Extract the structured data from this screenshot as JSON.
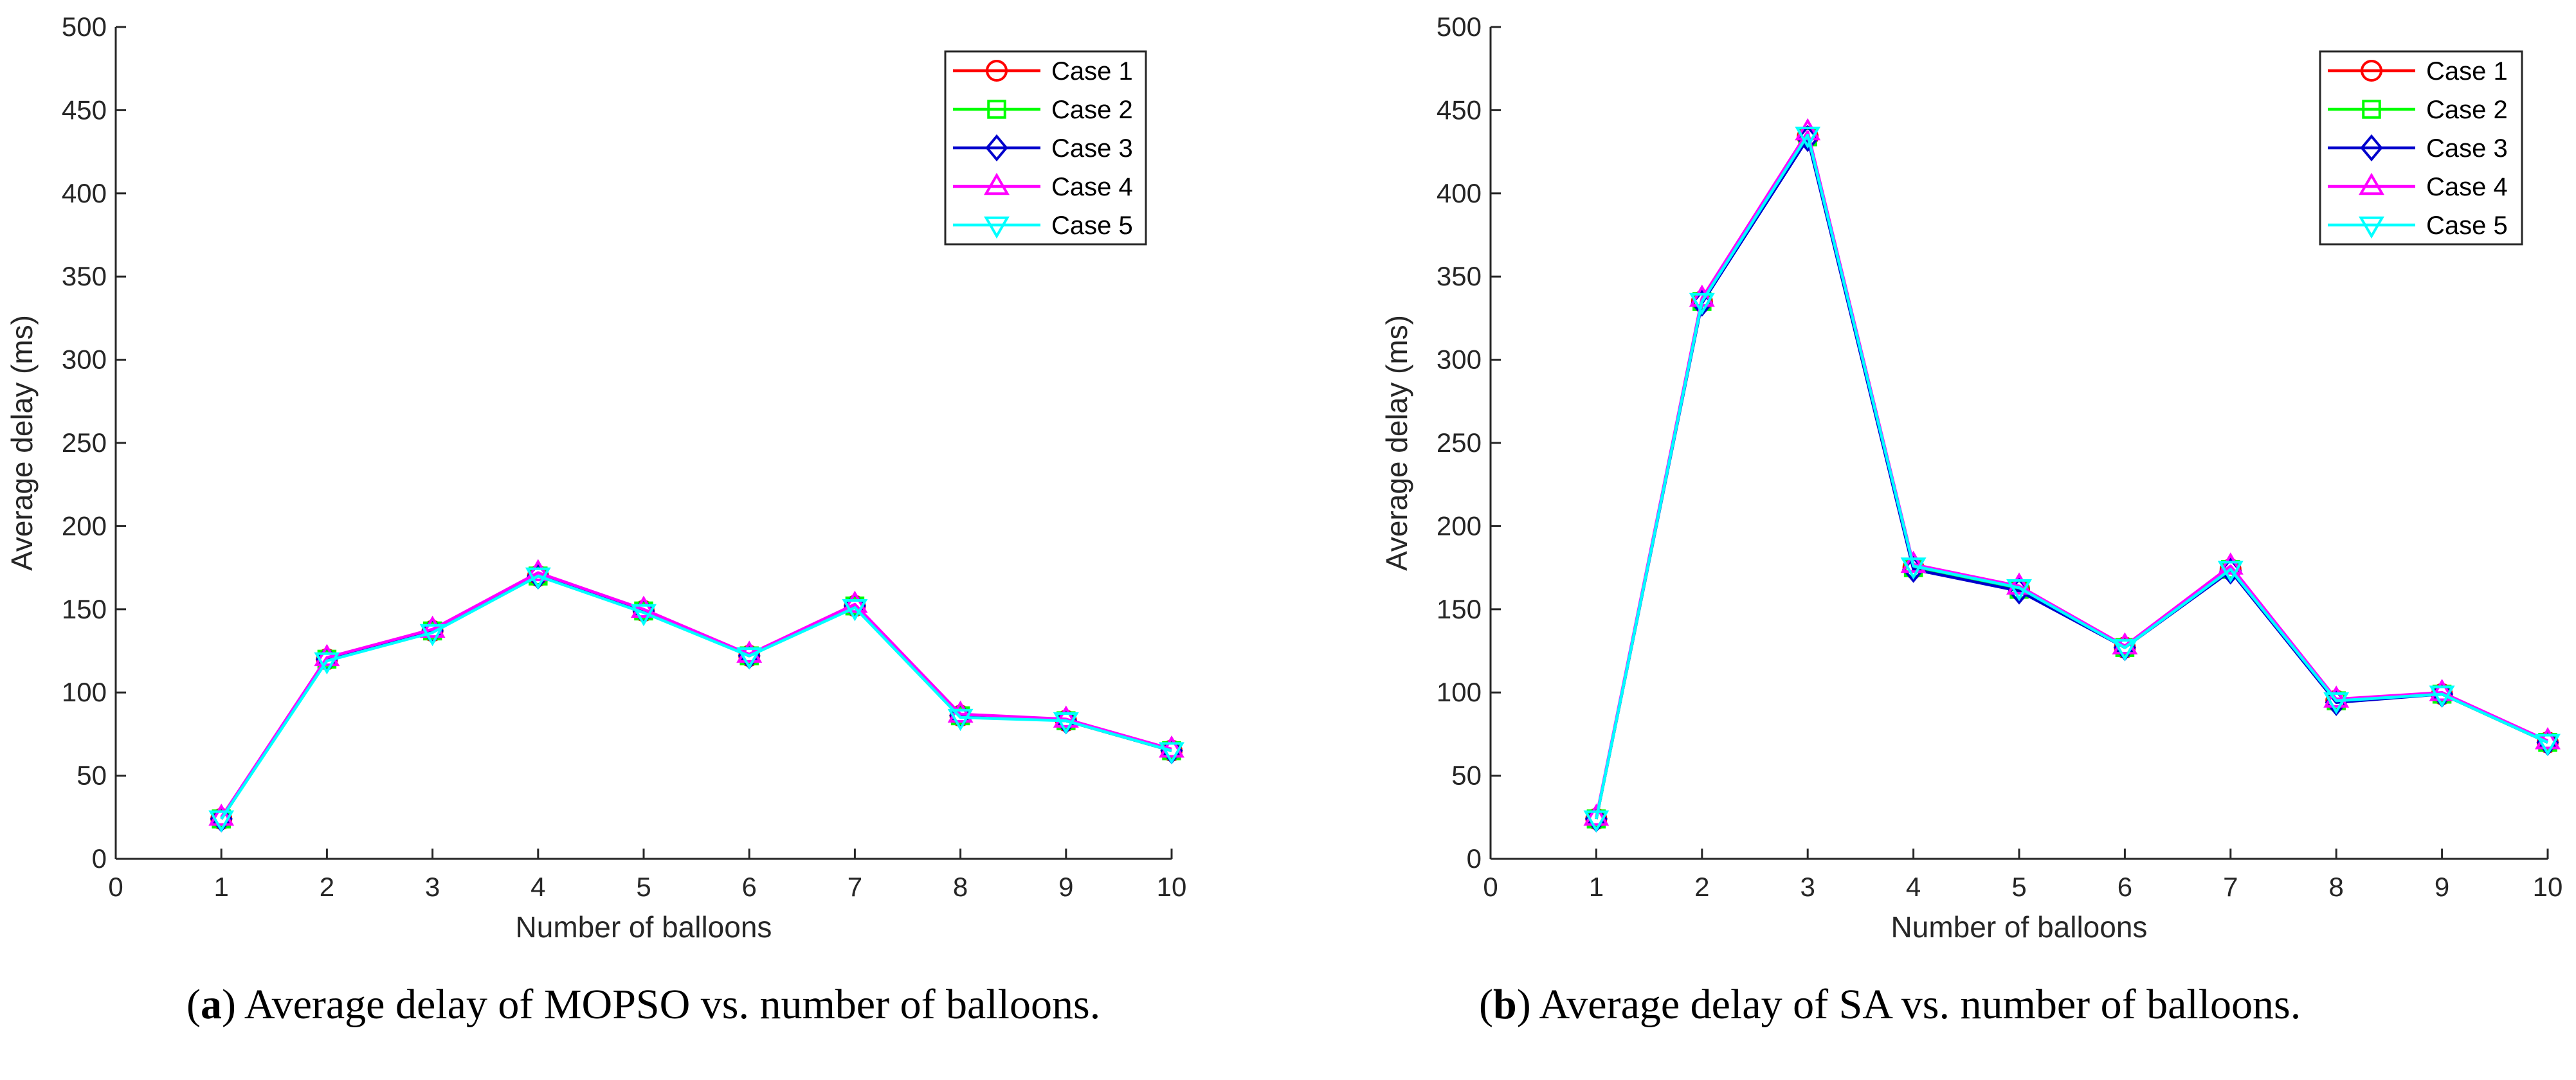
{
  "chart_data": [
    {
      "type": "line",
      "xlabel": "Number of balloons",
      "ylabel": "Average delay (ms)",
      "xlim": [
        0,
        10
      ],
      "ylim": [
        0,
        500
      ],
      "xticks": [
        0,
        1,
        2,
        3,
        4,
        5,
        6,
        7,
        8,
        9,
        10
      ],
      "yticks": [
        0,
        50,
        100,
        150,
        200,
        250,
        300,
        350,
        400,
        450,
        500
      ],
      "legend_position": "top-right",
      "x": [
        1,
        2,
        3,
        4,
        5,
        6,
        7,
        8,
        9,
        10
      ],
      "series": [
        {
          "name": "Case 1",
          "color": "#ff0000",
          "marker": "circle",
          "values": [
            24,
            120,
            137,
            170,
            149,
            122,
            152,
            86,
            83,
            65
          ]
        },
        {
          "name": "Case 2",
          "color": "#00ff00",
          "marker": "square",
          "values": [
            24,
            120,
            137,
            170,
            149,
            122,
            152,
            86,
            83,
            65
          ]
        },
        {
          "name": "Case 3",
          "color": "#0000cc",
          "marker": "diamond",
          "values": [
            24,
            120,
            137,
            170,
            149,
            122,
            152,
            86,
            83,
            65
          ]
        },
        {
          "name": "Case 4",
          "color": "#ff00ff",
          "marker": "triangle-up",
          "values": [
            25,
            121,
            138,
            172,
            150,
            123,
            153,
            87,
            84,
            66
          ]
        },
        {
          "name": "Case 5",
          "color": "#00ffff",
          "marker": "triangle-down",
          "values": [
            24,
            119,
            136,
            170,
            148,
            122,
            151,
            85,
            83,
            65
          ]
        }
      ]
    },
    {
      "type": "line",
      "xlabel": "Number of balloons",
      "ylabel": "Average delay (ms)",
      "xlim": [
        0,
        10
      ],
      "ylim": [
        0,
        500
      ],
      "xticks": [
        0,
        1,
        2,
        3,
        4,
        5,
        6,
        7,
        8,
        9,
        10
      ],
      "yticks": [
        0,
        50,
        100,
        150,
        200,
        250,
        300,
        350,
        400,
        450,
        500
      ],
      "legend_position": "top-right",
      "x": [
        1,
        2,
        3,
        4,
        5,
        6,
        7,
        8,
        9,
        10
      ],
      "series": [
        {
          "name": "Case 1",
          "color": "#ff0000",
          "marker": "circle",
          "values": [
            24,
            335,
            434,
            175,
            162,
            127,
            174,
            95,
            99,
            70
          ]
        },
        {
          "name": "Case 2",
          "color": "#00ff00",
          "marker": "square",
          "values": [
            24,
            335,
            434,
            175,
            162,
            127,
            174,
            95,
            99,
            70
          ]
        },
        {
          "name": "Case 3",
          "color": "#0000cc",
          "marker": "diamond",
          "values": [
            24,
            334,
            433,
            174,
            161,
            127,
            173,
            94,
            99,
            70
          ]
        },
        {
          "name": "Case 4",
          "color": "#ff00ff",
          "marker": "triangle-up",
          "values": [
            25,
            337,
            437,
            177,
            164,
            128,
            176,
            96,
            100,
            71
          ]
        },
        {
          "name": "Case 5",
          "color": "#00ffff",
          "marker": "triangle-down",
          "values": [
            24,
            335,
            435,
            176,
            163,
            127,
            174,
            95,
            99,
            70
          ]
        }
      ]
    }
  ],
  "captions": {
    "a_label": "a",
    "a_text": "Average delay of MOPSO vs. number of balloons.",
    "b_label": "b",
    "b_text": "Average delay of SA vs. number of balloons."
  }
}
